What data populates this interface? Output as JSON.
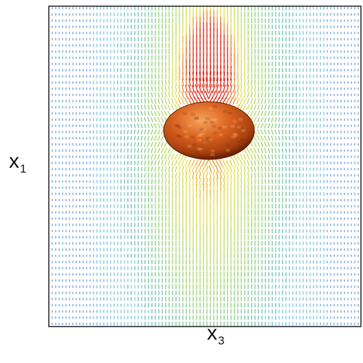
{
  "figure": {
    "y_axis_label": {
      "base": "x",
      "subscript": "1"
    },
    "x_axis_label": {
      "base": "x",
      "subscript": "3"
    },
    "colors": {
      "frame": "#1a1a1a",
      "vector_low": "#2b6cc4",
      "vector_mid_low": "#4fb4d8",
      "vector_mid": "#8fd06a",
      "vector_mid_high": "#e8e040",
      "vector_high": "#e02010",
      "ellipsoid_light": "#f08a3c",
      "ellipsoid_dark": "#8a2a08"
    }
  }
}
